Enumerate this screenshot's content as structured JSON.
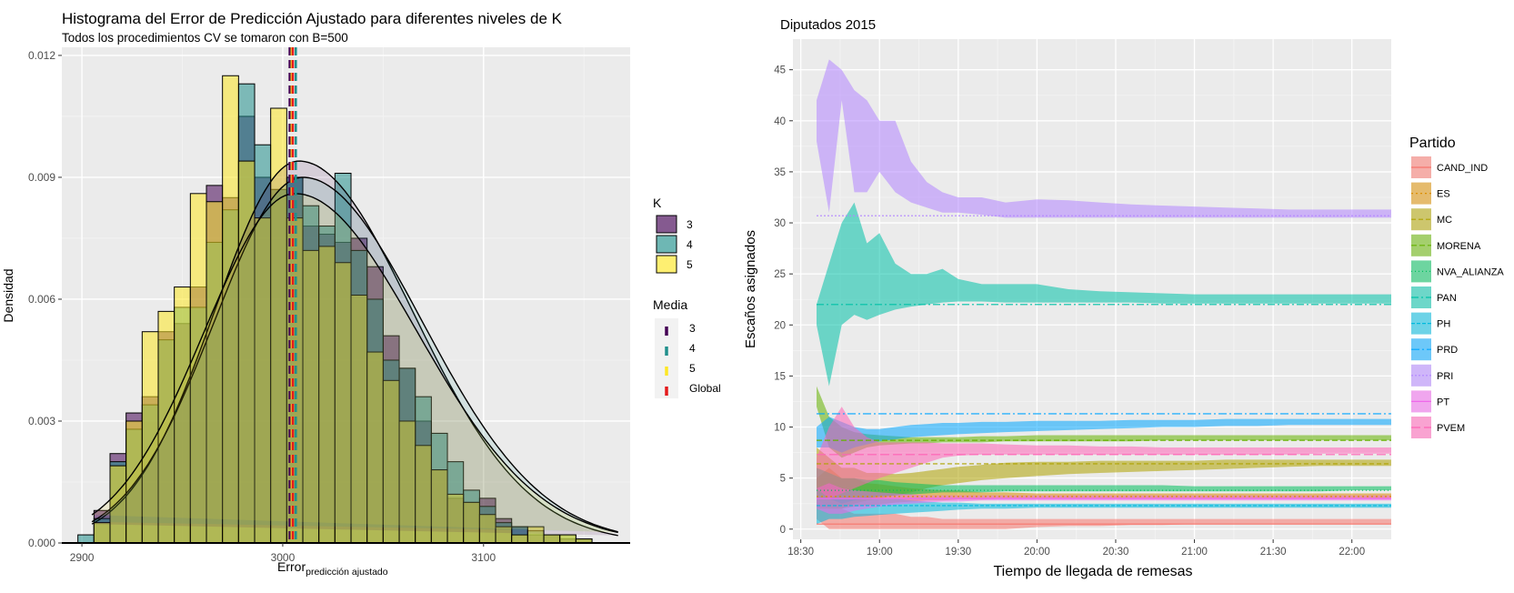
{
  "chart_data": [
    {
      "type": "histogram",
      "title": "Histograma del Error de Predicción Ajustado para diferentes niveles de K",
      "subtitle": "Todos los procedimientos CV se tomaron con B=500",
      "xlabel_main": "Error",
      "xlabel_sub": "predicción ajustado",
      "ylabel": "Densidad",
      "xlim": [
        2890,
        3173
      ],
      "ylim": [
        0,
        0.0122
      ],
      "xticks": [
        2900,
        3000,
        3100
      ],
      "yticks": [
        0.0,
        0.003,
        0.006,
        0.009,
        0.012
      ],
      "ytick_labels": [
        "0.000",
        "0.003",
        "0.006",
        "0.009",
        "0.012"
      ],
      "bins": [
        2898,
        2906,
        2914,
        2922,
        2930,
        2938,
        2946,
        2954,
        2962,
        2970,
        2978,
        2986,
        2994,
        3002,
        3010,
        3018,
        3026,
        3034,
        3042,
        3050,
        3058,
        3066,
        3074,
        3082,
        3090,
        3098,
        3106,
        3114,
        3122,
        3130,
        3138,
        3146,
        3154,
        3162,
        3170
      ],
      "series": [
        {
          "name": "3",
          "color": "#440154",
          "values": [
            0,
            0.0008,
            0.0022,
            0.0032,
            0.0036,
            0.0052,
            0.0054,
            0.0063,
            0.0088,
            0.0085,
            0.0105,
            0.009,
            0.0087,
            0.009,
            0.0078,
            0.0076,
            0.0074,
            0.0075,
            0.0068,
            0.0051,
            0.0043,
            0.003,
            0.0018,
            0.0011,
            0.001,
            0.0011,
            0.0006,
            0.0004,
            0.0002,
            0.0002,
            0.0001,
            0.0001,
            0,
            0
          ]
        },
        {
          "name": "4",
          "color": "#21908C",
          "values": [
            0.0002,
            0.0006,
            0.002,
            0.0028,
            0.0034,
            0.005,
            0.0058,
            0.0058,
            0.0074,
            0.0082,
            0.0113,
            0.0098,
            0.0087,
            0.009,
            0.0083,
            0.0078,
            0.0091,
            0.0072,
            0.006,
            0.0045,
            0.0043,
            0.0036,
            0.0027,
            0.002,
            0.0013,
            0.0009,
            0.0005,
            0.0004,
            0.0003,
            0.0002,
            0.0002,
            0.0001,
            0,
            0
          ]
        },
        {
          "name": "5",
          "color": "#FDE725",
          "values": [
            0,
            0.0005,
            0.0019,
            0.003,
            0.0052,
            0.0057,
            0.0063,
            0.0086,
            0.0084,
            0.0115,
            0.0094,
            0.008,
            0.0107,
            0.008,
            0.0072,
            0.0073,
            0.0069,
            0.0061,
            0.0047,
            0.004,
            0.003,
            0.0024,
            0.0018,
            0.0012,
            0.001,
            0.0007,
            0.0004,
            0.0002,
            0.0004,
            0.0002,
            0.0002,
            0.0001,
            0,
            0
          ]
        }
      ],
      "density_curves": [
        {
          "name": "3",
          "color": "#440154",
          "mean": 3008,
          "sd": 42,
          "peak": 0.0094
        },
        {
          "name": "4",
          "color": "#21908C",
          "mean": 3010,
          "sd": 44,
          "peak": 0.009
        },
        {
          "name": "5",
          "color": "#FDE725",
          "mean": 3006,
          "sd": 45,
          "peak": 0.0086
        }
      ],
      "means": [
        {
          "name": "3",
          "value": 3003.5,
          "color": "#440154"
        },
        {
          "name": "4",
          "value": 3006.5,
          "color": "#21908C"
        },
        {
          "name": "5",
          "value": 3004.5,
          "color": "#FDE725"
        },
        {
          "name": "Global",
          "value": 3005,
          "color": "#E41A1C"
        }
      ],
      "legend": {
        "k_title": "K",
        "k_items": [
          "3",
          "4",
          "5"
        ],
        "media_title": "Media",
        "media_items": [
          "3",
          "4",
          "5",
          "Global"
        ]
      }
    },
    {
      "type": "area",
      "title": "Diputados 2015",
      "xlabel": "Tiempo de llegada de remesas",
      "ylabel": "Escaños asignados",
      "x_unit": "hours",
      "xlim": [
        18.45,
        22.25
      ],
      "ylim": [
        -1,
        48
      ],
      "xticks": [
        18.5,
        19.0,
        19.5,
        20.0,
        20.5,
        21.0,
        21.5,
        22.0
      ],
      "xtick_labels": [
        "18:30",
        "19:00",
        "19:30",
        "20:00",
        "20:30",
        "21:00",
        "21:30",
        "22:00"
      ],
      "yticks": [
        0,
        5,
        10,
        15,
        20,
        25,
        30,
        35,
        40,
        45
      ],
      "x": [
        18.6,
        18.68,
        18.76,
        18.84,
        18.92,
        19.0,
        19.1,
        19.2,
        19.3,
        19.4,
        19.5,
        19.65,
        19.8,
        20.0,
        20.2,
        20.4,
        20.6,
        20.8,
        21.0,
        21.2,
        21.4,
        21.6,
        21.8,
        22.0,
        22.25
      ],
      "legend_title": "Partido",
      "series": [
        {
          "name": "CAND_IND",
          "color": "#F8766D",
          "dash": "",
          "final": 0.5,
          "lower": [
            1,
            0,
            0,
            0,
            0,
            0,
            0,
            0,
            0,
            0,
            0,
            0,
            0,
            0.2,
            0.3,
            0.3,
            0.4,
            0.4,
            0.5,
            0.5,
            0.5,
            0.5,
            0.5,
            0.5,
            0.5
          ],
          "upper": [
            3,
            2,
            2,
            1.5,
            1.5,
            1.5,
            1.5,
            1.2,
            1.2,
            1,
            1,
            1,
            1,
            1,
            1,
            1,
            1,
            1,
            1,
            1,
            1,
            1,
            1,
            1,
            1
          ]
        },
        {
          "name": "ES",
          "color": "#DB8E00",
          "dash": "2,3",
          "final": 3.2,
          "lower": [
            2,
            2,
            2,
            2.2,
            2.3,
            2.4,
            2.6,
            2.7,
            2.8,
            2.8,
            2.9,
            2.9,
            3,
            3,
            3,
            3,
            3,
            3,
            3,
            3,
            3,
            3,
            3,
            3,
            3
          ],
          "upper": [
            5,
            6,
            5,
            5,
            4.5,
            4.4,
            4.2,
            4,
            3.9,
            3.8,
            3.8,
            3.6,
            3.6,
            3.5,
            3.5,
            3.5,
            3.5,
            3.5,
            3.5,
            3.5,
            3.5,
            3.5,
            3.5,
            3.5,
            3.5
          ]
        },
        {
          "name": "MC",
          "color": "#AEA200",
          "dash": "5,3",
          "final": 6.4,
          "lower": [
            3,
            2,
            2,
            2.5,
            2.8,
            3,
            3.3,
            3.6,
            4,
            4.3,
            4.5,
            4.8,
            5,
            5.2,
            5.4,
            5.5,
            5.6,
            5.7,
            5.8,
            5.9,
            6,
            6.1,
            6.2,
            6.2,
            6.2
          ],
          "upper": [
            8,
            7,
            6,
            6,
            5.5,
            5.5,
            5.4,
            5.5,
            5.7,
            5.9,
            6.1,
            6.3,
            6.5,
            6.6,
            6.6,
            6.7,
            6.7,
            6.7,
            6.7,
            6.8,
            6.8,
            6.8,
            6.8,
            6.8,
            6.8
          ]
        },
        {
          "name": "MORENA",
          "color": "#64B200",
          "dash": "6,3",
          "final": 8.7,
          "lower": [
            12,
            8,
            7,
            7.5,
            8,
            8.2,
            8.3,
            8.4,
            8.4,
            8.5,
            8.5,
            8.5,
            8.6,
            8.6,
            8.6,
            8.6,
            8.6,
            8.7,
            8.7,
            8.7,
            8.7,
            8.7,
            8.7,
            8.7,
            8.7
          ],
          "upper": [
            14,
            11,
            10,
            9.5,
            9.3,
            9.2,
            9.1,
            9,
            9,
            9,
            9,
            9.1,
            9.1,
            9.2,
            9.2,
            9.2,
            9.2,
            9.2,
            9.2,
            9.2,
            9.2,
            9.2,
            9.2,
            9.2,
            9.2
          ]
        },
        {
          "name": "NVA_ALIANZA",
          "color": "#00BD5C",
          "dash": "1,3",
          "final": 3.8,
          "lower": [
            3,
            3,
            2.5,
            2.8,
            3,
            3.2,
            3.3,
            3.4,
            3.5,
            3.6,
            3.6,
            3.6,
            3.7,
            3.7,
            3.7,
            3.7,
            3.7,
            3.7,
            3.7,
            3.7,
            3.7,
            3.7,
            3.7,
            3.8,
            3.8
          ],
          "upper": [
            6,
            5.5,
            5,
            5,
            4.8,
            4.8,
            4.6,
            4.5,
            4.4,
            4.3,
            4.3,
            4.3,
            4.3,
            4.3,
            4.3,
            4.3,
            4.3,
            4.3,
            4.2,
            4.2,
            4.2,
            4.2,
            4.2,
            4.2,
            4.2
          ]
        },
        {
          "name": "PAN",
          "color": "#00C1A7",
          "dash": "8,3,2,3",
          "final": 22,
          "lower": [
            20,
            14,
            20,
            21,
            20.5,
            21,
            21.5,
            21.8,
            22,
            22.2,
            22.3,
            22.3,
            22.2,
            22.2,
            22.2,
            22.2,
            22.2,
            22.1,
            22.1,
            22.1,
            22.1,
            22.1,
            22.1,
            22.1,
            22.1
          ],
          "upper": [
            22,
            26,
            30,
            32,
            28,
            29,
            26,
            25,
            25,
            25.5,
            24.5,
            24,
            24,
            24,
            23.5,
            23.3,
            23.2,
            23.1,
            23,
            23,
            23,
            23,
            23,
            23,
            23
          ]
        },
        {
          "name": "PH",
          "color": "#00BADE",
          "dash": "4,2",
          "final": 2.3,
          "lower": [
            0.5,
            1,
            1,
            1.2,
            1.3,
            1.4,
            1.5,
            1.6,
            1.7,
            1.8,
            1.9,
            2,
            2,
            2.1,
            2.1,
            2.1,
            2.1,
            2.1,
            2.1,
            2.1,
            2.1,
            2.1,
            2.1,
            2.1,
            2.1
          ],
          "upper": [
            3,
            3,
            3,
            3,
            3,
            3,
            3,
            2.8,
            2.7,
            2.6,
            2.6,
            2.5,
            2.5,
            2.5,
            2.5,
            2.5,
            2.5,
            2.5,
            2.5,
            2.5,
            2.5,
            2.5,
            2.5,
            2.5,
            2.5
          ]
        },
        {
          "name": "PRD",
          "color": "#00A6FF",
          "dash": "9,3,2,3",
          "final": 11.3,
          "lower": [
            8,
            8,
            7.5,
            8,
            8.3,
            8.6,
            8.8,
            9,
            9.1,
            9.2,
            9.3,
            9.4,
            9.5,
            9.6,
            9.7,
            9.8,
            9.9,
            10,
            10,
            10.1,
            10.1,
            10.2,
            10.2,
            10.2,
            10.2
          ],
          "upper": [
            10,
            11,
            10.5,
            10,
            9.8,
            9.8,
            10,
            10.2,
            10.3,
            10.4,
            10.4,
            10.5,
            10.5,
            10.6,
            10.6,
            10.6,
            10.7,
            10.7,
            10.7,
            10.8,
            10.8,
            10.8,
            10.8,
            10.8,
            10.8
          ]
        },
        {
          "name": "PRI",
          "color": "#B385FF",
          "dash": "2,2",
          "final": 30.7,
          "lower": [
            38,
            31,
            42,
            33,
            33,
            35,
            33,
            32,
            31.5,
            31,
            31,
            30.8,
            30.5,
            30.5,
            30.5,
            30.5,
            30.5,
            30.5,
            30.5,
            30.5,
            30.5,
            30.5,
            30.5,
            30.5,
            30.5
          ],
          "upper": [
            42,
            46,
            45,
            43,
            42,
            40,
            40,
            36,
            34,
            33,
            32.5,
            32.5,
            32,
            32.3,
            32.2,
            32,
            31.8,
            31.7,
            31.6,
            31.5,
            31.4,
            31.3,
            31.3,
            31.3,
            31.3
          ]
        },
        {
          "name": "PT",
          "color": "#EF67EB",
          "dash": "",
          "final": 3.0,
          "lower": [
            2,
            1.5,
            1.5,
            1.8,
            2,
            2.2,
            2.4,
            2.5,
            2.6,
            2.7,
            2.7,
            2.8,
            2.8,
            2.8,
            2.8,
            2.8,
            2.8,
            2.8,
            2.8,
            2.8,
            2.8,
            2.8,
            2.8,
            2.8,
            2.8
          ],
          "upper": [
            4,
            4.5,
            4,
            3.8,
            3.7,
            3.6,
            3.5,
            3.4,
            3.3,
            3.3,
            3.3,
            3.3,
            3.3,
            3.3,
            3.3,
            3.3,
            3.3,
            3.3,
            3.3,
            3.3,
            3.3,
            3.3,
            3.3,
            3.3,
            3.3
          ]
        },
        {
          "name": "PVEM",
          "color": "#FF63B6",
          "dash": "10,4",
          "final": 7.3,
          "lower": [
            4,
            3,
            3.5,
            4,
            4.5,
            5,
            5.5,
            6,
            6.5,
            7,
            7.2,
            7.3,
            7.3,
            7.3,
            7.3,
            7.3,
            7.3,
            7.3,
            7.3,
            7.3,
            7.3,
            7.3,
            7.4,
            7.4,
            7.4
          ],
          "upper": [
            7,
            10,
            12,
            10,
            9,
            8.5,
            8.5,
            8.5,
            8.5,
            8.4,
            8.4,
            8.4,
            8.3,
            8.2,
            8.2,
            8.1,
            8.1,
            8,
            8,
            8,
            8,
            8,
            8,
            8,
            8
          ]
        }
      ]
    }
  ]
}
